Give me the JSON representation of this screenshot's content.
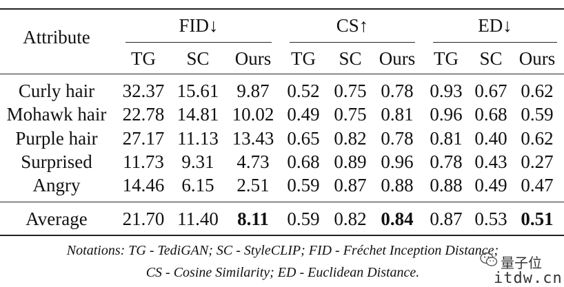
{
  "table": {
    "attribute_header": "Attribute",
    "groups": [
      {
        "label": "FID↓",
        "subs": [
          "TG",
          "SC",
          "Ours"
        ]
      },
      {
        "label": "CS↑",
        "subs": [
          "TG",
          "SC",
          "Ours"
        ]
      },
      {
        "label": "ED↓",
        "subs": [
          "TG",
          "SC",
          "Ours"
        ]
      }
    ],
    "rows": [
      {
        "label": "Curly hair",
        "values": [
          "32.37",
          "15.61",
          "9.87",
          "0.52",
          "0.75",
          "0.78",
          "0.93",
          "0.67",
          "0.62"
        ]
      },
      {
        "label": "Mohawk hair",
        "values": [
          "22.78",
          "14.81",
          "10.02",
          "0.49",
          "0.75",
          "0.81",
          "0.96",
          "0.68",
          "0.59"
        ]
      },
      {
        "label": "Purple hair",
        "values": [
          "27.17",
          "11.13",
          "13.43",
          "0.65",
          "0.82",
          "0.78",
          "0.81",
          "0.40",
          "0.62"
        ]
      },
      {
        "label": "Surprised",
        "values": [
          "11.73",
          "9.31",
          "4.73",
          "0.68",
          "0.89",
          "0.96",
          "0.78",
          "0.43",
          "0.27"
        ]
      },
      {
        "label": "Angry",
        "values": [
          "14.46",
          "6.15",
          "2.51",
          "0.59",
          "0.87",
          "0.88",
          "0.88",
          "0.49",
          "0.47"
        ]
      }
    ],
    "average": {
      "label": "Average",
      "values": [
        "21.70",
        "11.40",
        "8.11",
        "0.59",
        "0.82",
        "0.84",
        "0.87",
        "0.53",
        "0.51"
      ],
      "bold_columns": [
        2,
        5,
        8
      ]
    }
  },
  "notes": {
    "line1": "Notations: TG - TediGAN; SC - StyleCLIP; FID - Fréchet Inception Distance;",
    "line2": "CS - Cosine Similarity; ED - Euclidean Distance."
  },
  "watermark": {
    "brand": "量子位",
    "site": "itdw.cn",
    "icon": "wechat-icon"
  }
}
